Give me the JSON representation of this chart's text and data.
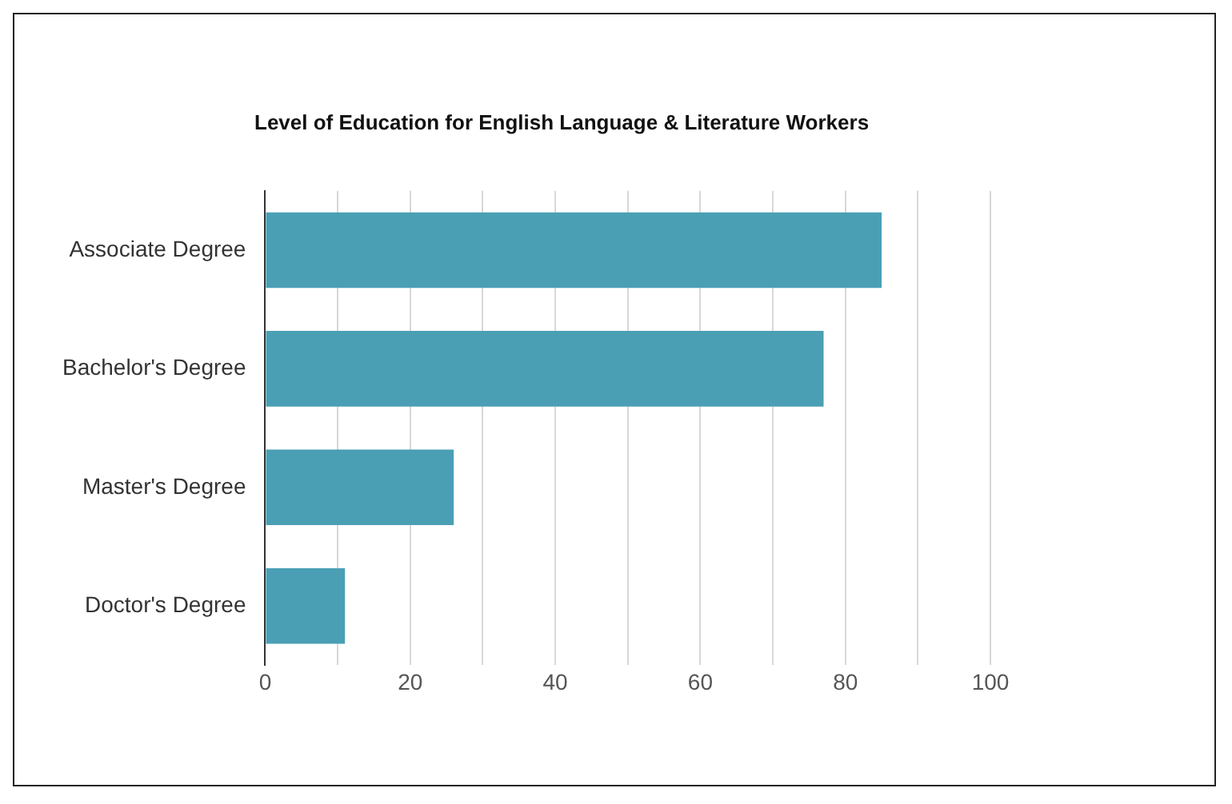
{
  "chart_data": {
    "type": "bar",
    "orientation": "horizontal",
    "title": "Level of Education for English Language & Literature Workers",
    "categories": [
      "Associate Degree",
      "Bachelor's Degree",
      "Master's Degree",
      "Doctor's Degree"
    ],
    "values": [
      85,
      77,
      26,
      11
    ],
    "color": "#4a9fb5",
    "xlim": [
      0,
      100
    ],
    "xticks": [
      0,
      {
        "value": 10,
        "label": null
      },
      20,
      {
        "value": 30,
        "label": null
      },
      40,
      {
        "value": 50,
        "label": null
      },
      60,
      {
        "value": 70,
        "label": null
      },
      80,
      {
        "value": 90,
        "label": null
      },
      100
    ],
    "grid": "x",
    "legend": false
  }
}
